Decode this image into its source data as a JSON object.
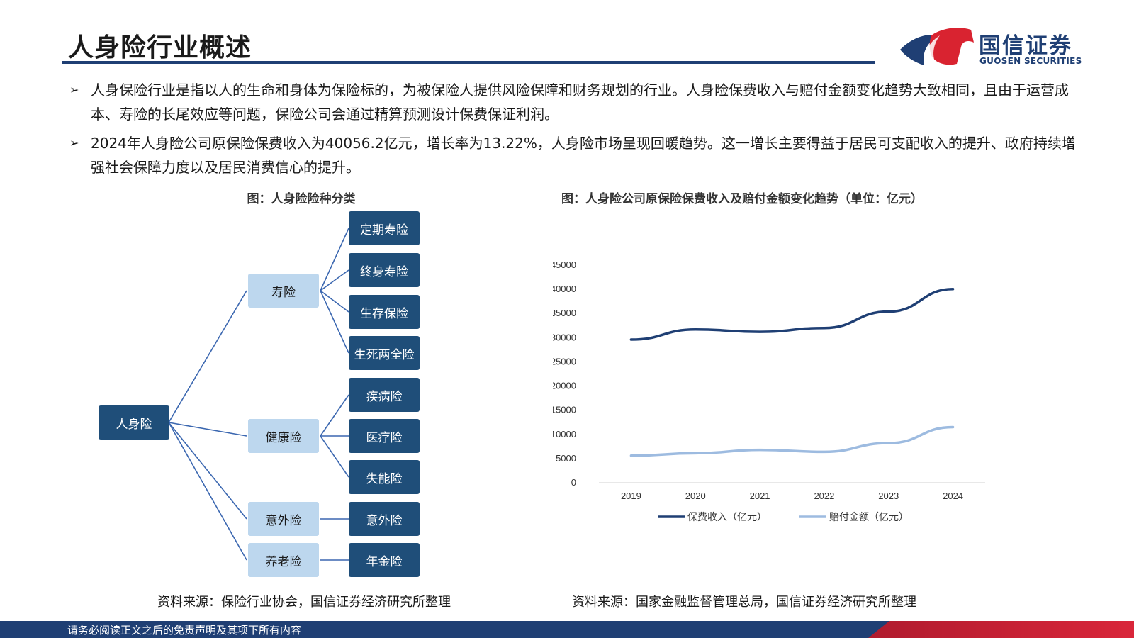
{
  "header": {
    "title": "人身险行业概述",
    "logo_cn": "国信证券",
    "logo_en": "GUOSEN SECURITIES"
  },
  "bullets": [
    "人身保险行业是指以人的生命和身体为保险标的，为被保险人提供风险保障和财务规划的行业。人身险保费收入与赔付金额变化趋势大致相同，且由于运营成本、寿险的长尾效应等问题，保险公司会通过精算预测设计保费保证利润。",
    "2024年人身险公司原保险保费收入为40056.2亿元，增长率为13.22%，人身险市场呈现回暖趋势。这一增长主要得益于居民可支配收入的提升、政府持续增强社会保障力度以及居民消费信心的提升。"
  ],
  "left_figure": {
    "title": "图：人身险险种分类",
    "root": "人身险",
    "categories": [
      {
        "label": "寿险",
        "children": [
          "定期寿险",
          "终身寿险",
          "生存保险",
          "生死两全险"
        ]
      },
      {
        "label": "健康险",
        "children": [
          "疾病险",
          "医疗险",
          "失能险"
        ]
      },
      {
        "label": "意外险",
        "children": [
          "意外险"
        ]
      },
      {
        "label": "养老险",
        "children": [
          "年金险"
        ]
      }
    ],
    "source": "资料来源：保险行业协会，国信证券经济研究所整理"
  },
  "right_figure": {
    "title": "图：人身险公司原保险保费收入及赔付金额变化趋势（单位：亿元）",
    "source": "资料来源：国家金融监督管理总局，国信证券经济研究所整理"
  },
  "chart_data": {
    "type": "line",
    "title": "图：人身险公司原保险保费收入及赔付金额变化趋势（单位：亿元）",
    "x": [
      "2019",
      "2020",
      "2021",
      "2022",
      "2023",
      "2024"
    ],
    "ylim": [
      0,
      45000
    ],
    "yticks": [
      0,
      5000,
      10000,
      15000,
      20000,
      25000,
      30000,
      35000,
      40000,
      45000
    ],
    "grid": false,
    "legend": "bottom",
    "series": [
      {
        "name": "保费收入（亿元）",
        "color": "#1f3f74",
        "values": [
          29600,
          31700,
          31200,
          32000,
          35400,
          40056.2
        ]
      },
      {
        "name": "赔付金额（亿元）",
        "color": "#9dbbe0",
        "values": [
          5600,
          6100,
          6800,
          6400,
          8200,
          11500
        ]
      }
    ]
  },
  "colors": {
    "navy": "#1f3f74",
    "box_dark": "#1f4e79",
    "box_light": "#bdd7ee",
    "accent_red": "#d92330"
  },
  "footer": {
    "disclaimer": "请务必阅读正文之后的免责声明及其项下所有内容"
  }
}
